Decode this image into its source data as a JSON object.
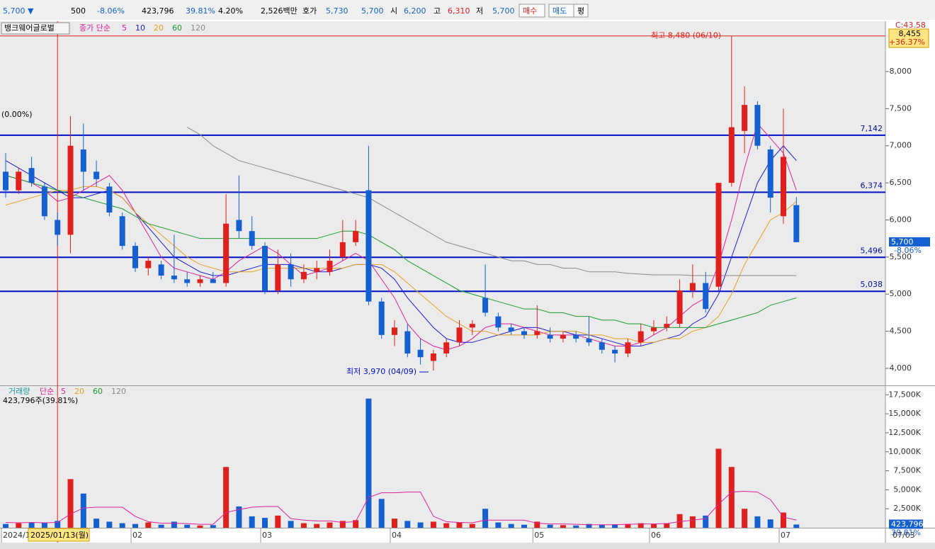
{
  "header": [
    "5,700 ▼",
    "500",
    "-8.06%",
    "423,796",
    "39.81%",
    "4.20%",
    "2,526백만",
    "호가",
    "5,730",
    "5,700",
    "시",
    "6,200",
    "고",
    "6,310",
    "저",
    "5,700",
    "매수",
    "매도",
    "평"
  ],
  "chart_data": [
    {
      "type": "candlestick",
      "title": "뱅크웨어글로벌",
      "legend_label": "종가 단순",
      "categories": [
        "2024/1",
        null,
        null,
        null,
        null,
        null,
        null,
        null,
        null,
        null,
        "02",
        null,
        null,
        null,
        null,
        null,
        null,
        null,
        null,
        null,
        "03",
        null,
        null,
        null,
        null,
        null,
        null,
        null,
        null,
        null,
        "04",
        null,
        null,
        null,
        null,
        null,
        null,
        null,
        null,
        null,
        null,
        "05",
        null,
        null,
        null,
        null,
        null,
        null,
        null,
        null,
        "06",
        null,
        null,
        null,
        null,
        null,
        null,
        null,
        null,
        null,
        "07",
        null
      ],
      "open": [
        6650,
        6400,
        6700,
        6450,
        6000,
        5800,
        6950,
        6650,
        6450,
        6050,
        5650,
        5350,
        5400,
        5250,
        5200,
        5150,
        5200,
        5150,
        6000,
        5850,
        5650,
        5050,
        5400,
        5200,
        5300,
        5300,
        5500,
        5700,
        6400,
        4900,
        4450,
        4500,
        4250,
        4100,
        4200,
        4350,
        4550,
        4950,
        4700,
        4550,
        4500,
        4450,
        4450,
        4400,
        4450,
        4400,
        4350,
        4250,
        4200,
        4350,
        4500,
        4550,
        4600,
        5050,
        5150,
        5100,
        6500,
        7200,
        7550,
        6950,
        6050,
        6200
      ],
      "high": [
        6900,
        6700,
        6850,
        6500,
        6100,
        7400,
        7300,
        6800,
        6500,
        6100,
        5700,
        5500,
        5450,
        5800,
        5300,
        5250,
        5300,
        6350,
        6600,
        6050,
        5700,
        5600,
        5550,
        5400,
        5450,
        5600,
        6000,
        6000,
        7000,
        4950,
        4650,
        4600,
        4400,
        4250,
        4400,
        4650,
        4650,
        5400,
        4750,
        4600,
        4550,
        4850,
        4550,
        4500,
        4500,
        4700,
        4400,
        4300,
        4400,
        4600,
        4650,
        4700,
        5200,
        5400,
        5300,
        6500,
        8480,
        7800,
        7600,
        7000,
        7500,
        6310
      ],
      "low": [
        6300,
        6350,
        6450,
        6000,
        5650,
        5550,
        6400,
        6450,
        6050,
        5600,
        5300,
        5250,
        5200,
        5150,
        5100,
        5100,
        5150,
        5100,
        5750,
        5600,
        5000,
        5000,
        5100,
        5150,
        5200,
        5250,
        5450,
        5650,
        4850,
        4400,
        4300,
        4150,
        4050,
        3970,
        4150,
        4300,
        4450,
        4700,
        4500,
        4450,
        4400,
        4400,
        4350,
        4350,
        4350,
        4300,
        4200,
        4080,
        4150,
        4300,
        4450,
        4500,
        4550,
        4950,
        4750,
        5050,
        6450,
        6900,
        6950,
        6100,
        5950,
        5700
      ],
      "close": [
        6400,
        6650,
        6500,
        6050,
        5800,
        7000,
        6650,
        6550,
        6100,
        5650,
        5350,
        5450,
        5250,
        5200,
        5150,
        5200,
        5150,
        5950,
        5850,
        5650,
        5050,
        5400,
        5200,
        5300,
        5350,
        5450,
        5700,
        5850,
        4900,
        4450,
        4550,
        4200,
        4150,
        4200,
        4350,
        4550,
        4600,
        4750,
        4550,
        4500,
        4450,
        4500,
        4400,
        4450,
        4400,
        4350,
        4250,
        4200,
        4350,
        4500,
        4550,
        4600,
        5050,
        5150,
        4800,
        6500,
        7250,
        7550,
        7000,
        6300,
        6850,
        5700
      ],
      "ma": [
        {
          "name": "5",
          "color": "#e0209a",
          "values": [
            6600,
            6550,
            6500,
            6400,
            6250,
            6300,
            6400,
            6500,
            6600,
            6400,
            6100,
            5800,
            5500,
            5350,
            5300,
            5250,
            5200,
            5300,
            5450,
            5550,
            5650,
            5550,
            5400,
            5250,
            5300,
            5350,
            5450,
            5550,
            5450,
            5200,
            4950,
            4600,
            4400,
            4300,
            4250,
            4300,
            4400,
            4550,
            4600,
            4600,
            4550,
            4500,
            4450,
            4450,
            4450,
            4400,
            4350,
            4300,
            4300,
            4350,
            4450,
            4550,
            4700,
            4850,
            4950,
            5400,
            6000,
            6700,
            7300,
            7100,
            6900,
            6400
          ]
        },
        {
          "name": "10",
          "color": "#1a1adc",
          "values": [
            6800,
            6700,
            6600,
            6500,
            6400,
            6300,
            6300,
            6350,
            6400,
            6300,
            6100,
            5900,
            5700,
            5500,
            5400,
            5300,
            5250,
            5250,
            5300,
            5350,
            5400,
            5400,
            5400,
            5350,
            5300,
            5300,
            5350,
            5400,
            5400,
            5350,
            5200,
            4950,
            4750,
            4550,
            4400,
            4350,
            4350,
            4400,
            4450,
            4500,
            4550,
            4550,
            4500,
            4500,
            4450,
            4450,
            4400,
            4350,
            4300,
            4300,
            4350,
            4400,
            4450,
            4600,
            4700,
            5000,
            5500,
            6000,
            6500,
            6800,
            7000,
            6800
          ]
        },
        {
          "name": "20",
          "color": "#e8a020",
          "values": [
            6200,
            6250,
            6300,
            6350,
            6400,
            6400,
            6450,
            6450,
            6400,
            6300,
            6100,
            5950,
            5800,
            5650,
            5500,
            5400,
            5350,
            5300,
            5300,
            5300,
            5350,
            5350,
            5350,
            5350,
            5350,
            5350,
            5350,
            5400,
            5400,
            5400,
            5300,
            5150,
            5000,
            4850,
            4700,
            4600,
            4500,
            4500,
            4450,
            4450,
            4450,
            4450,
            4500,
            4500,
            4500,
            4450,
            4450,
            4400,
            4400,
            4350,
            4350,
            4400,
            4400,
            4500,
            4550,
            4700,
            5000,
            5400,
            5700,
            6000,
            6100,
            6250
          ]
        },
        {
          "name": "60",
          "color": "#1a9a30",
          "values": [
            6600,
            6550,
            6500,
            6450,
            6400,
            6350,
            6300,
            6250,
            6200,
            6150,
            6050,
            5950,
            5900,
            5850,
            5800,
            5750,
            5750,
            5750,
            5750,
            5750,
            5750,
            5750,
            5750,
            5750,
            5750,
            5800,
            5850,
            5850,
            5800,
            5700,
            5600,
            5450,
            5350,
            5250,
            5150,
            5050,
            5000,
            4950,
            4900,
            4850,
            4800,
            4800,
            4750,
            4750,
            4700,
            4700,
            4650,
            4650,
            4600,
            4600,
            4550,
            4550,
            4550,
            4550,
            4550,
            4600,
            4650,
            4700,
            4750,
            4850,
            4900,
            4950
          ]
        },
        {
          "name": "120",
          "color": "#8a8a8a",
          "values": [
            null,
            null,
            null,
            null,
            null,
            null,
            null,
            null,
            null,
            null,
            null,
            null,
            null,
            null,
            7250,
            7150,
            7000,
            6900,
            6800,
            6750,
            6700,
            6650,
            6600,
            6550,
            6500,
            6450,
            6400,
            6350,
            6300,
            6200,
            6100,
            6000,
            5900,
            5800,
            5700,
            5650,
            5600,
            5550,
            5500,
            5450,
            5450,
            5400,
            5400,
            5350,
            5350,
            5300,
            5300,
            5300,
            5280,
            5270,
            5260,
            5260,
            5260,
            5250,
            5250,
            5250,
            5250,
            5250,
            5250,
            5250,
            5250,
            5250
          ]
        }
      ],
      "ylim": [
        3780,
        8678
      ],
      "yticks": [
        {
          "value": 4000,
          "label": "4,000"
        },
        {
          "value": 4500,
          "label": "4,500"
        },
        {
          "value": 5000,
          "label": "5,000"
        },
        {
          "value": 5500,
          "label": "5,500"
        },
        {
          "value": 6000,
          "label": "6,000"
        },
        {
          "value": 6500,
          "label": "6,500"
        },
        {
          "value": 7000,
          "label": "7,000"
        },
        {
          "value": 7500,
          "label": "7,500"
        },
        {
          "value": 8000,
          "label": "8,000"
        }
      ],
      "hlines": [
        {
          "value": 7142,
          "label": "7,142"
        },
        {
          "value": 6374,
          "label": "6,374"
        },
        {
          "value": 5496,
          "label": "5,496"
        },
        {
          "value": 5038,
          "label": "5,038"
        }
      ],
      "max_marker": {
        "value": 8480,
        "label": "최고 8,480 (06/10)"
      },
      "min_marker": {
        "value": 3970,
        "label": "최저 3,970 (04/09)"
      },
      "start_label": "(0.00%)",
      "last_tag": [
        "5,700",
        "-8.06%"
      ],
      "top_tag": [
        "C:43.58",
        "8,455",
        "+36.37%"
      ],
      "cursor_label": "2025/01/13(월)",
      "end_label": "07/03"
    },
    {
      "type": "bar",
      "title": "거래량",
      "legend_label": "단순",
      "legend_items": [
        {
          "name": "5",
          "color": "#e0209a"
        },
        {
          "name": "20",
          "color": "#e8a020"
        },
        {
          "name": "60",
          "color": "#1a9a30"
        },
        {
          "name": "120",
          "color": "#8a8a8a"
        }
      ],
      "info": "423,796주(39.81%)",
      "values": [
        500,
        600,
        700,
        650,
        900,
        6400,
        4500,
        1200,
        800,
        600,
        500,
        700,
        400,
        800,
        400,
        300,
        350,
        8000,
        2800,
        1500,
        1300,
        1600,
        900,
        600,
        500,
        700,
        900,
        1000,
        17000,
        3800,
        1200,
        900,
        700,
        800,
        600,
        700,
        500,
        2500,
        700,
        500,
        400,
        800,
        400,
        350,
        300,
        500,
        400,
        450,
        500,
        600,
        500,
        600,
        1800,
        1500,
        1600,
        10400,
        8000,
        2500,
        1500,
        1100,
        2000,
        423.796
      ],
      "ma5": [
        700,
        650,
        700,
        650,
        700,
        1800,
        2600,
        2700,
        2700,
        2700,
        1500,
        800,
        600,
        600,
        550,
        450,
        450,
        2000,
        2400,
        2700,
        2800,
        2800,
        1200,
        1000,
        900,
        900,
        700,
        800,
        4000,
        4600,
        4600,
        4700,
        4700,
        1500,
        800,
        700,
        650,
        1000,
        1000,
        1000,
        1000,
        600,
        500,
        500,
        450,
        400,
        400,
        400,
        450,
        500,
        500,
        550,
        800,
        1000,
        1200,
        3100,
        4700,
        4800,
        4700,
        3700,
        1400,
        1000
      ],
      "ylim": [
        0,
        18650
      ],
      "yticks": [
        {
          "value": 2500,
          "label": "2,500K"
        },
        {
          "value": 5000,
          "label": "5,000K"
        },
        {
          "value": 7500,
          "label": "7,500K"
        },
        {
          "value": 10000,
          "label": "10,000K"
        },
        {
          "value": 12500,
          "label": "12,500K"
        },
        {
          "value": 15000,
          "label": "15,000K"
        },
        {
          "value": 17500,
          "label": "17,500K"
        }
      ],
      "last_tag": [
        "423,796",
        "39.81%"
      ]
    }
  ]
}
